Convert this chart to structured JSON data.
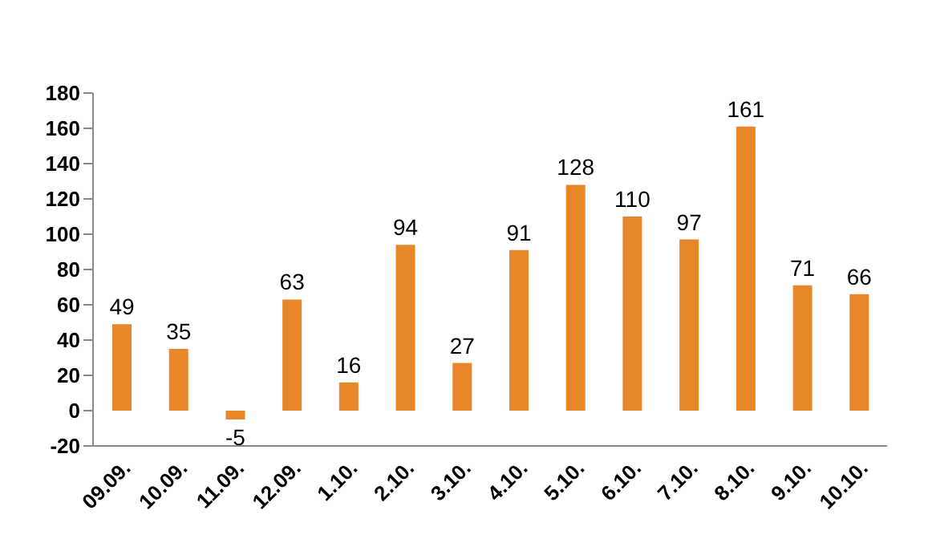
{
  "chart_data": {
    "type": "bar",
    "categories": [
      "09.09.",
      "10.09.",
      "11.09.",
      "12.09.",
      "1.10.",
      "2.10.",
      "3.10.",
      "4.10.",
      "5.10.",
      "6.10.",
      "7.10.",
      "8.10.",
      "9.10.",
      "10.10."
    ],
    "values": [
      49,
      35,
      -5,
      63,
      16,
      94,
      27,
      91,
      128,
      110,
      97,
      161,
      71,
      66
    ],
    "color": "#e8862a",
    "ylim": [
      -20,
      180
    ],
    "yticks": [
      -20,
      0,
      20,
      40,
      60,
      80,
      100,
      120,
      140,
      160,
      180
    ],
    "data_labels": true
  }
}
